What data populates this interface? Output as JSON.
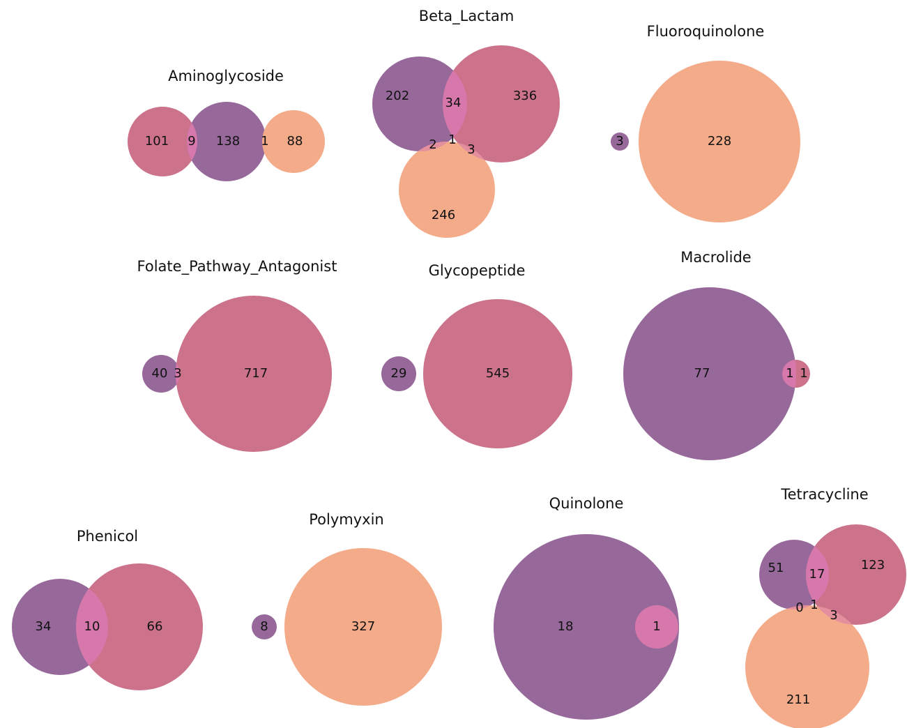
{
  "chart_data": [
    {
      "type": "venn",
      "title": "Aminoglycoside",
      "values": [
        101,
        9,
        138,
        1,
        88
      ],
      "colors": [
        "#cc738b",
        "#96699a",
        "#f3ab8a"
      ],
      "overlap_color": "#d778ad"
    },
    {
      "type": "venn",
      "title": "Beta_Lactam",
      "values": [
        202,
        34,
        336,
        2,
        1,
        3,
        246
      ],
      "colors": [
        "#96699a",
        "#cc738b",
        "#f3ab8a"
      ],
      "overlap_color": "#d778ad"
    },
    {
      "type": "venn",
      "title": "Fluoroquinolone",
      "values": [
        3,
        228
      ],
      "colors": [
        "#96699a",
        "#f3ab8a"
      ],
      "overlap_color": "#d778ad"
    },
    {
      "type": "venn",
      "title": "Folate_Pathway_Antagonist",
      "values": [
        40,
        3,
        717
      ],
      "colors": [
        "#96699a",
        "#cc738b"
      ],
      "overlap_color": "#d778ad"
    },
    {
      "type": "venn",
      "title": "Glycopeptide",
      "values": [
        29,
        545
      ],
      "colors": [
        "#96699a",
        "#cc738b"
      ],
      "overlap_color": "#d778ad"
    },
    {
      "type": "venn",
      "title": "Macrolide",
      "values": [
        77,
        1,
        1
      ],
      "colors": [
        "#96699a",
        "#cc738b"
      ],
      "overlap_color": "#d778ad"
    },
    {
      "type": "venn",
      "title": "Phenicol",
      "values": [
        34,
        10,
        66
      ],
      "colors": [
        "#96699a",
        "#cc738b"
      ],
      "overlap_color": "#d778ad"
    },
    {
      "type": "venn",
      "title": "Polymyxin",
      "values": [
        8,
        327
      ],
      "colors": [
        "#96699a",
        "#f3ab8a"
      ],
      "overlap_color": "#d778ad"
    },
    {
      "type": "venn",
      "title": "Quinolone",
      "values": [
        18,
        1
      ],
      "colors": [
        "#96699a",
        "#cc738b"
      ],
      "overlap_color": "#d778ad"
    },
    {
      "type": "venn",
      "title": "Tetracycline",
      "values": [
        51,
        17,
        123,
        0,
        1,
        3,
        211
      ],
      "colors": [
        "#96699a",
        "#cc738b",
        "#f3ab8a"
      ],
      "overlap_color": "#d778ad"
    }
  ]
}
